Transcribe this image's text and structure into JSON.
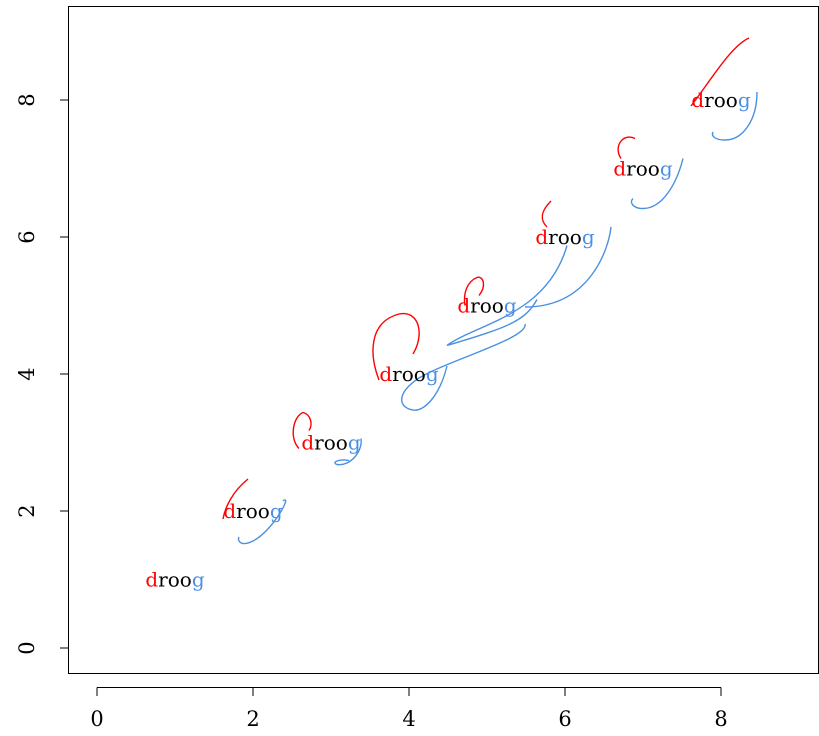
{
  "chart_data": {
    "type": "scatter",
    "title": "",
    "xlabel": "",
    "ylabel": "",
    "xlim": [
      -0.4,
      9.3
    ],
    "ylim": [
      -0.4,
      9.2
    ],
    "x_ticks": [
      "0",
      "2",
      "4",
      "6",
      "8"
    ],
    "y_ticks": [
      "0",
      "2",
      "4",
      "6",
      "8"
    ],
    "grid": false,
    "legend": "none",
    "colors": {
      "first_letter": "#ff0000",
      "middle": "#000000",
      "last_letter": "#4a90e2"
    },
    "points": [
      {
        "x": 1,
        "y": 1,
        "first": "d",
        "middle": "roo",
        "last": "g"
      },
      {
        "x": 2,
        "y": 2,
        "first": "d",
        "middle": "roo",
        "last": "g"
      },
      {
        "x": 3,
        "y": 3,
        "first": "d",
        "middle": "roo",
        "last": "g"
      },
      {
        "x": 4,
        "y": 4,
        "first": "d",
        "middle": "roo",
        "last": "g"
      },
      {
        "x": 5,
        "y": 5,
        "first": "d",
        "middle": "roo",
        "last": "g"
      },
      {
        "x": 6,
        "y": 6,
        "first": "d",
        "middle": "roo",
        "last": "g"
      },
      {
        "x": 7,
        "y": 7,
        "first": "d",
        "middle": "roo",
        "last": "g"
      },
      {
        "x": 8,
        "y": 8,
        "first": "d",
        "middle": "roo",
        "last": "g"
      }
    ]
  }
}
